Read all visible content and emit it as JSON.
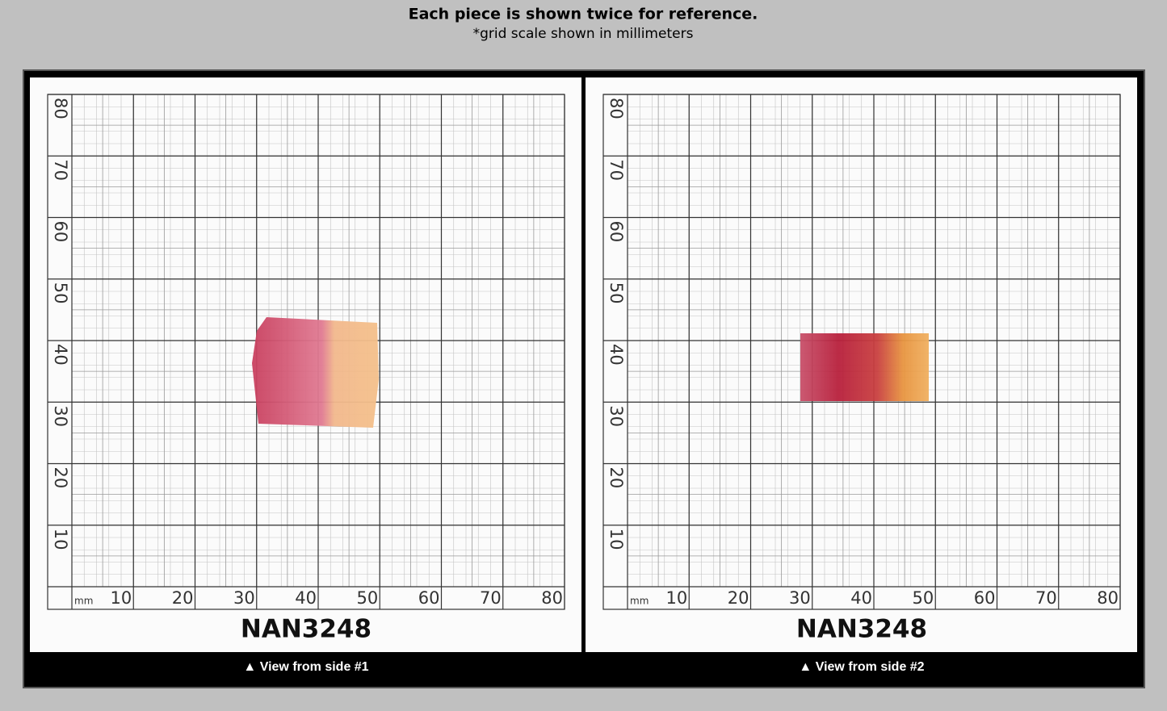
{
  "header": {
    "title": "Each piece is shown twice for reference.",
    "subtitle": "*grid scale shown in millimeters"
  },
  "panels": [
    {
      "unit": "mm",
      "x_labels": [
        10,
        20,
        30,
        40,
        50,
        60,
        70,
        80
      ],
      "y_labels": [
        10,
        20,
        30,
        40,
        50,
        60,
        70,
        80
      ],
      "code": "NAN3248",
      "caption": "▲ View from side #1"
    },
    {
      "unit": "mm",
      "x_labels": [
        10,
        20,
        30,
        40,
        50,
        60,
        70,
        80
      ],
      "y_labels": [
        10,
        20,
        30,
        40,
        50,
        60,
        70,
        80
      ],
      "code": "NAN3248",
      "caption": "▲ View from side #2"
    }
  ]
}
